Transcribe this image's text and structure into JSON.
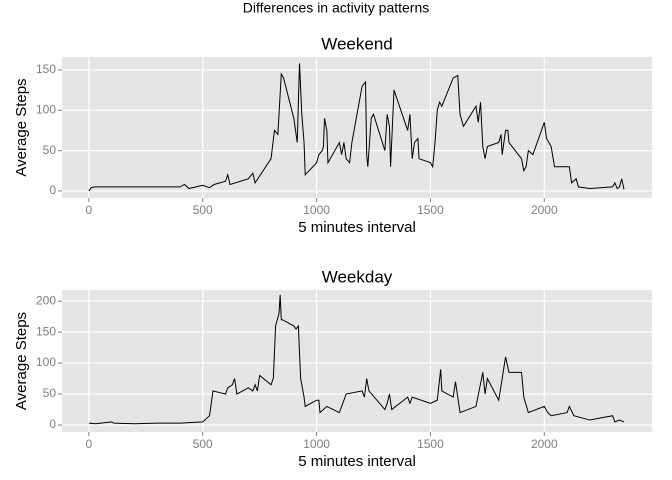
{
  "title": "Differences in activity patterns",
  "chart_data": [
    {
      "type": "line",
      "title": "Weekend",
      "x_label": "5 minutes interval",
      "y_label": "Average Steps",
      "x": [
        0,
        10,
        25,
        100,
        200,
        300,
        400,
        420,
        440,
        500,
        530,
        550,
        600,
        610,
        620,
        700,
        720,
        730,
        800,
        815,
        830,
        845,
        855,
        900,
        915,
        925,
        935,
        945,
        950,
        1000,
        1010,
        1025,
        1030,
        1035,
        1045,
        1050,
        1100,
        1110,
        1120,
        1130,
        1145,
        1155,
        1200,
        1215,
        1220,
        1225,
        1240,
        1250,
        1300,
        1310,
        1320,
        1325,
        1340,
        1400,
        1410,
        1420,
        1430,
        1445,
        1450,
        1500,
        1510,
        1520,
        1530,
        1540,
        1550,
        1600,
        1620,
        1630,
        1645,
        1700,
        1710,
        1720,
        1730,
        1740,
        1750,
        1800,
        1810,
        1815,
        1830,
        1840,
        1845,
        1900,
        1910,
        1920,
        1930,
        1950,
        2000,
        2010,
        2020,
        2030,
        2045,
        2100,
        2110,
        2120,
        2140,
        2150,
        2200,
        2300,
        2310,
        2320,
        2330,
        2340,
        2350
      ],
      "series": [
        {
          "color": "#000000",
          "values": [
            0,
            4,
            5,
            5,
            5,
            5,
            5,
            8,
            3,
            7,
            4,
            8,
            12,
            20,
            8,
            15,
            22,
            10,
            40,
            75,
            70,
            145,
            140,
            90,
            60,
            158,
            95,
            60,
            20,
            35,
            45,
            50,
            55,
            90,
            75,
            35,
            60,
            45,
            60,
            40,
            35,
            60,
            130,
            135,
            45,
            30,
            90,
            95,
            50,
            95,
            80,
            30,
            125,
            75,
            95,
            40,
            60,
            65,
            40,
            35,
            30,
            60,
            100,
            110,
            105,
            140,
            143,
            95,
            80,
            105,
            85,
            110,
            55,
            40,
            55,
            60,
            70,
            45,
            75,
            75,
            60,
            40,
            25,
            30,
            50,
            45,
            85,
            65,
            60,
            55,
            30,
            30,
            30,
            10,
            15,
            5,
            3,
            5,
            10,
            3,
            5,
            15,
            2
          ]
        }
      ],
      "xlim": [
        -118,
        2473
      ],
      "ylim": [
        -8.75,
        166
      ],
      "xticks": [
        0,
        500,
        1000,
        1500,
        2000
      ],
      "yticks": [
        0,
        50,
        100,
        150
      ],
      "grid": true
    },
    {
      "type": "line",
      "title": "Weekday",
      "x_label": "5 minutes interval",
      "y_label": "Average Steps",
      "x": [
        0,
        30,
        100,
        110,
        200,
        300,
        400,
        500,
        515,
        530,
        545,
        600,
        610,
        630,
        640,
        650,
        700,
        720,
        730,
        740,
        750,
        800,
        810,
        820,
        835,
        840,
        845,
        850,
        900,
        910,
        920,
        930,
        945,
        950,
        1000,
        1010,
        1015,
        1030,
        1045,
        1100,
        1130,
        1200,
        1210,
        1220,
        1230,
        1300,
        1310,
        1320,
        1330,
        1400,
        1410,
        1420,
        1500,
        1530,
        1545,
        1550,
        1600,
        1610,
        1630,
        1700,
        1730,
        1740,
        1750,
        1800,
        1830,
        1845,
        1900,
        1910,
        1930,
        2000,
        2015,
        2030,
        2100,
        2110,
        2130,
        2200,
        2300,
        2310,
        2330,
        2350
      ],
      "series": [
        {
          "color": "#000000",
          "values": [
            3,
            2,
            5,
            3,
            2,
            3,
            3,
            5,
            10,
            15,
            55,
            50,
            60,
            65,
            75,
            50,
            60,
            55,
            65,
            55,
            80,
            65,
            75,
            160,
            180,
            210,
            170,
            170,
            160,
            155,
            160,
            75,
            45,
            30,
            40,
            40,
            20,
            25,
            30,
            20,
            50,
            55,
            45,
            75,
            55,
            25,
            35,
            50,
            25,
            45,
            35,
            45,
            35,
            40,
            90,
            55,
            45,
            70,
            20,
            30,
            85,
            50,
            75,
            40,
            110,
            85,
            85,
            45,
            20,
            30,
            20,
            15,
            20,
            30,
            15,
            8,
            15,
            5,
            8,
            5
          ]
        }
      ],
      "xlim": [
        -118,
        2473
      ],
      "ylim": [
        -11.3,
        218
      ],
      "xticks": [
        0,
        500,
        1000,
        1500,
        2000
      ],
      "yticks": [
        0,
        50,
        100,
        150,
        200
      ],
      "grid": true
    }
  ]
}
